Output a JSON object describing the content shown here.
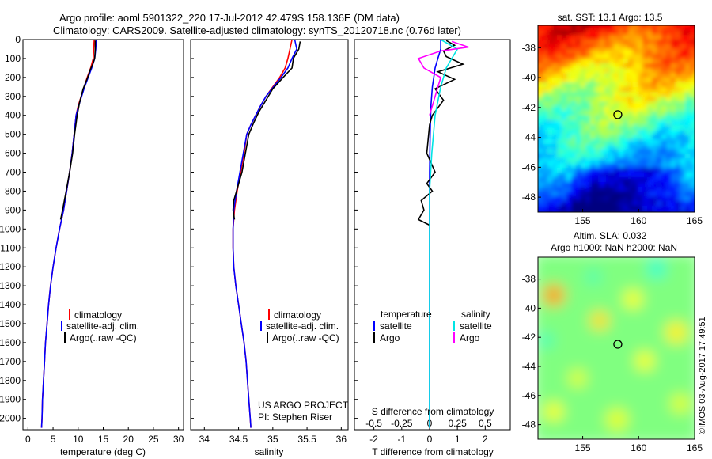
{
  "title": {
    "line1": "Argo profile: aoml 5901322_220 17-Jul-2012 42.479S 158.136E (DM data)",
    "line2": "Climatology: CARS2009. Satellite-adjusted climatology: synTS_20120718.nc (0.76d later)"
  },
  "stamp": "©IMOS 03-Aug-2017 17:49:51",
  "colors": {
    "climatology": "#ff0000",
    "satellite": "#0000ff",
    "argo": "#000000",
    "sal_satellite": "#00e5e5",
    "sal_argo": "#ff00ff"
  },
  "chart_data": [
    {
      "type": "line",
      "panel": "temperature",
      "xlabel": "temperature (deg C)",
      "ylabel": "",
      "xlim": [
        -1,
        31
      ],
      "ylim": [
        2060,
        0
      ],
      "xticks": [
        0,
        5,
        10,
        15,
        20,
        25,
        30
      ],
      "yticks": [
        0,
        100,
        200,
        300,
        400,
        500,
        600,
        700,
        800,
        900,
        1000,
        1100,
        1200,
        1300,
        1400,
        1500,
        1600,
        1700,
        1800,
        1900,
        2000
      ],
      "legend": [
        "climatology",
        "satellite-adj. clim.",
        "Argo(..raw -QC)"
      ],
      "series": [
        {
          "name": "climatology",
          "color": "#ff0000",
          "points": [
            [
              13.2,
              0
            ],
            [
              13.1,
              50
            ],
            [
              13.0,
              100
            ],
            [
              12.5,
              150
            ],
            [
              11.8,
              200
            ],
            [
              11.2,
              250
            ],
            [
              10.6,
              300
            ],
            [
              10.0,
              350
            ],
            [
              9.6,
              400
            ],
            [
              9.2,
              500
            ],
            [
              8.8,
              600
            ],
            [
              8.3,
              700
            ],
            [
              7.7,
              800
            ],
            [
              7.1,
              900
            ],
            [
              6.3,
              1000
            ],
            [
              5.6,
              1100
            ],
            [
              5.0,
              1200
            ],
            [
              4.5,
              1300
            ],
            [
              4.1,
              1400
            ],
            [
              3.8,
              1500
            ],
            [
              3.5,
              1600
            ],
            [
              3.3,
              1700
            ],
            [
              3.1,
              1800
            ],
            [
              2.9,
              1900
            ],
            [
              2.8,
              2000
            ],
            [
              2.7,
              2050
            ]
          ]
        },
        {
          "name": "satellite-adj. clim.",
          "color": "#0000ff",
          "points": [
            [
              13.6,
              0
            ],
            [
              13.5,
              50
            ],
            [
              13.3,
              100
            ],
            [
              12.7,
              150
            ],
            [
              12.0,
              200
            ],
            [
              11.3,
              250
            ],
            [
              10.7,
              300
            ],
            [
              10.1,
              350
            ],
            [
              9.6,
              400
            ],
            [
              9.2,
              500
            ],
            [
              8.8,
              600
            ],
            [
              8.3,
              700
            ],
            [
              7.7,
              800
            ],
            [
              7.1,
              900
            ],
            [
              6.3,
              1000
            ],
            [
              5.6,
              1100
            ],
            [
              5.0,
              1200
            ],
            [
              4.5,
              1300
            ],
            [
              4.1,
              1400
            ],
            [
              3.8,
              1500
            ],
            [
              3.5,
              1600
            ],
            [
              3.3,
              1700
            ],
            [
              3.1,
              1800
            ],
            [
              2.9,
              1900
            ],
            [
              2.8,
              2000
            ],
            [
              2.7,
              2050
            ]
          ]
        },
        {
          "name": "Argo(..raw -QC)",
          "color": "#000000",
          "points": [
            [
              13.4,
              5
            ],
            [
              13.4,
              50
            ],
            [
              13.3,
              100
            ],
            [
              12.9,
              130
            ],
            [
              12.4,
              160
            ],
            [
              11.9,
              200
            ],
            [
              11.0,
              260
            ],
            [
              10.3,
              330
            ],
            [
              9.8,
              400
            ],
            [
              9.3,
              500
            ],
            [
              8.9,
              600
            ],
            [
              8.3,
              700
            ],
            [
              7.6,
              800
            ],
            [
              6.9,
              900
            ],
            [
              6.5,
              950
            ]
          ]
        }
      ]
    },
    {
      "type": "line",
      "panel": "salinity",
      "xlabel": "salinity",
      "ylabel": "",
      "xlim": [
        33.8,
        36.1
      ],
      "ylim": [
        2060,
        0
      ],
      "xticks": [
        34,
        34.5,
        35,
        35.5,
        36
      ],
      "xticklabels": [
        "34",
        "34.5",
        "35",
        "35.5",
        "36"
      ],
      "legend": [
        "climatology",
        "satellite-adj. clim.",
        "Argo(..raw -QC)"
      ],
      "annotation": [
        "US ARGO PROJECT",
        "PI: Stephen Riser"
      ],
      "series": [
        {
          "name": "climatology",
          "color": "#ff0000",
          "points": [
            [
              35.28,
              0
            ],
            [
              35.25,
              50
            ],
            [
              35.22,
              100
            ],
            [
              35.18,
              150
            ],
            [
              35.1,
              200
            ],
            [
              35.0,
              250
            ],
            [
              34.9,
              300
            ],
            [
              34.82,
              350
            ],
            [
              34.75,
              400
            ],
            [
              34.68,
              450
            ],
            [
              34.62,
              500
            ],
            [
              34.58,
              600
            ],
            [
              34.53,
              700
            ],
            [
              34.48,
              800
            ],
            [
              34.44,
              900
            ],
            [
              34.42,
              1000
            ],
            [
              34.42,
              1100
            ],
            [
              34.43,
              1200
            ],
            [
              34.46,
              1300
            ],
            [
              34.5,
              1400
            ],
            [
              34.54,
              1500
            ],
            [
              34.58,
              1600
            ],
            [
              34.61,
              1700
            ],
            [
              34.63,
              1800
            ],
            [
              34.65,
              1900
            ],
            [
              34.67,
              2000
            ],
            [
              34.68,
              2050
            ]
          ]
        },
        {
          "name": "satellite-adj. clim.",
          "color": "#0000ff",
          "points": [
            [
              35.32,
              0
            ],
            [
              35.35,
              50
            ],
            [
              35.28,
              100
            ],
            [
              35.22,
              150
            ],
            [
              35.12,
              200
            ],
            [
              35.01,
              250
            ],
            [
              34.9,
              300
            ],
            [
              34.82,
              350
            ],
            [
              34.75,
              400
            ],
            [
              34.68,
              450
            ],
            [
              34.62,
              500
            ],
            [
              34.57,
              600
            ],
            [
              34.52,
              700
            ],
            [
              34.47,
              800
            ],
            [
              34.43,
              900
            ],
            [
              34.42,
              1000
            ],
            [
              34.42,
              1100
            ],
            [
              34.43,
              1200
            ],
            [
              34.46,
              1300
            ],
            [
              34.5,
              1400
            ],
            [
              34.54,
              1500
            ],
            [
              34.58,
              1600
            ],
            [
              34.61,
              1700
            ],
            [
              34.63,
              1800
            ],
            [
              34.65,
              1900
            ],
            [
              34.67,
              2000
            ],
            [
              34.68,
              2050
            ]
          ]
        },
        {
          "name": "Argo(..raw -QC)",
          "color": "#000000",
          "points": [
            [
              35.4,
              10
            ],
            [
              35.38,
              50
            ],
            [
              35.3,
              100
            ],
            [
              35.28,
              150
            ],
            [
              35.15,
              200
            ],
            [
              35.0,
              260
            ],
            [
              34.9,
              320
            ],
            [
              34.8,
              380
            ],
            [
              34.72,
              440
            ],
            [
              34.65,
              500
            ],
            [
              34.6,
              600
            ],
            [
              34.55,
              700
            ],
            [
              34.47,
              800
            ],
            [
              34.43,
              850
            ],
            [
              34.42,
              900
            ],
            [
              34.44,
              950
            ]
          ]
        }
      ]
    },
    {
      "type": "line",
      "panel": "difference",
      "xlabel": "T difference from climatology",
      "xlabel_top": "S difference from climatology",
      "xlim": [
        -2.7,
        2.9
      ],
      "ylim": [
        2060,
        0
      ],
      "xticks_T": [
        -2,
        -1,
        0,
        1,
        2
      ],
      "xticks_S": [
        -0.5,
        -0.25,
        0,
        0.25,
        0.5
      ],
      "xticklabels_S": [
        "-0.5",
        "-0.25",
        "0",
        "0.25",
        "0.5"
      ],
      "legend_temperature": [
        "temperature",
        "satellite",
        "Argo"
      ],
      "legend_salinity": [
        "salinity",
        "satellite",
        "Argo"
      ],
      "series": [
        {
          "name": "satellite",
          "color": "#0000ff",
          "points": [
            [
              0.4,
              0
            ],
            [
              0.4,
              50
            ],
            [
              0.3,
              100
            ],
            [
              0.2,
              150
            ],
            [
              0.15,
              200
            ],
            [
              0.1,
              250
            ],
            [
              0.05,
              350
            ],
            [
              0.02,
              500
            ],
            [
              0,
              700
            ],
            [
              0,
              2050
            ]
          ]
        },
        {
          "name": "Argo",
          "color": "#000000",
          "points": [
            [
              0.6,
              5
            ],
            [
              0.9,
              30
            ],
            [
              0.5,
              60
            ],
            [
              0.6,
              90
            ],
            [
              1.2,
              130
            ],
            [
              0.3,
              170
            ],
            [
              0.9,
              210
            ],
            [
              0.2,
              260
            ],
            [
              0.5,
              320
            ],
            [
              0.1,
              400
            ],
            [
              0,
              450
            ],
            [
              -0.1,
              600
            ],
            [
              0.2,
              700
            ],
            [
              -0.1,
              760
            ],
            [
              0.1,
              800
            ],
            [
              -0.3,
              850
            ],
            [
              -0.2,
              900
            ],
            [
              -0.4,
              950
            ],
            [
              0,
              980
            ]
          ]
        },
        {
          "name": "salinity satellite",
          "color": "#00e5e5",
          "points": [
            [
              0.1,
              0
            ],
            [
              0.25,
              50
            ],
            [
              0.2,
              100
            ],
            [
              0.15,
              150
            ],
            [
              0.1,
              250
            ],
            [
              0.05,
              400
            ],
            [
              0.02,
              600
            ],
            [
              0,
              800
            ],
            [
              0,
              2050
            ]
          ]
        },
        {
          "name": "salinity Argo",
          "color": "#ff00ff",
          "points": [
            [
              0.2,
              10
            ],
            [
              0.35,
              40
            ],
            [
              0.1,
              60
            ],
            [
              -0.1,
              100
            ],
            [
              -0.05,
              150
            ],
            [
              0.1,
              200
            ],
            [
              0.05,
              300
            ],
            [
              0,
              400
            ]
          ]
        }
      ]
    },
    {
      "type": "heatmap",
      "panel": "sst_map",
      "title": "sat. SST: 13.1 Argo: 13.5",
      "xlim": [
        151,
        165
      ],
      "ylim": [
        -49,
        -36.5
      ],
      "xticks": [
        155,
        160,
        165
      ],
      "yticks": [
        -38,
        -40,
        -42,
        -44,
        -46,
        -48
      ],
      "marker": [
        158.136,
        -42.479
      ]
    },
    {
      "type": "heatmap",
      "panel": "sla_map",
      "title_line1": "Altim. SLA: 0.032",
      "title_line2": "Argo h1000: NaN h2000: NaN",
      "xlim": [
        151,
        165
      ],
      "ylim": [
        -49,
        -36.5
      ],
      "xticks": [
        155,
        160,
        165
      ],
      "yticks": [
        -38,
        -40,
        -42,
        -44,
        -46,
        -48
      ],
      "marker": [
        158.136,
        -42.479
      ]
    }
  ]
}
